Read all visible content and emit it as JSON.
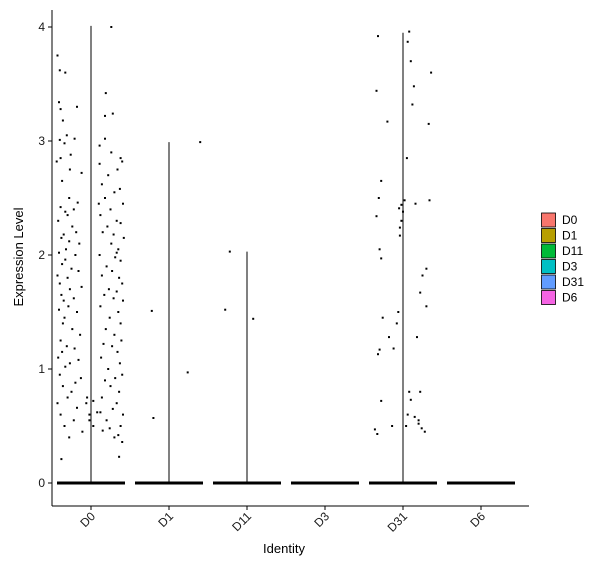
{
  "chart_data": {
    "type": "violin",
    "title": "",
    "xlabel": "Identity",
    "ylabel": "Expression Level",
    "ylim": [
      -0.24,
      4.22
    ],
    "yticks": [
      0,
      1,
      2,
      3,
      4
    ],
    "categories": [
      "D0",
      "D1",
      "D11",
      "D3",
      "D31",
      "D6"
    ],
    "group_max": [
      4.01,
      2.99,
      2.03,
      0.0,
      3.95,
      0.0
    ],
    "legend": {
      "position": "right",
      "entries": [
        {
          "label": "D0",
          "color": "#F8766D"
        },
        {
          "label": "D1",
          "color": "#B79F00"
        },
        {
          "label": "D11",
          "color": "#00BA38"
        },
        {
          "label": "D3",
          "color": "#00BFC4"
        },
        {
          "label": "D31",
          "color": "#619CFF"
        },
        {
          "label": "D6",
          "color": "#F564E3"
        }
      ]
    },
    "points": [
      {
        "category": "D0",
        "jitter": [
          -0.43,
          -0.4,
          -0.33,
          -0.41,
          -0.39,
          -0.36,
          -0.18,
          -0.31,
          -0.21,
          -0.4,
          -0.34,
          -0.26,
          -0.39,
          -0.44,
          -0.27,
          -0.12,
          -0.37,
          -0.28,
          -0.17,
          -0.39,
          -0.22,
          -0.33,
          -0.3,
          -0.42,
          -0.24,
          -0.19,
          -0.35,
          -0.38,
          -0.28,
          -0.15,
          -0.32,
          -0.41,
          -0.2,
          -0.33,
          -0.37,
          -0.25,
          -0.16,
          -0.43,
          -0.3,
          -0.4,
          -0.12,
          -0.27,
          -0.38,
          -0.22,
          -0.35,
          -0.29,
          -0.41,
          -0.18,
          -0.34,
          -0.36,
          -0.24,
          -0.14,
          -0.39,
          -0.31,
          -0.21,
          -0.37,
          -0.42,
          -0.16,
          -0.27,
          -0.33,
          -0.4,
          -0.13,
          -0.2,
          -0.36,
          -0.25,
          -0.3,
          -0.43,
          -0.18,
          -0.39,
          -0.22,
          -0.34,
          -0.11,
          -0.28,
          -0.38,
          -0.05,
          -0.06,
          -0.02,
          -0.02,
          0.03,
          0.08,
          0.03,
          0.28,
          0.18,
          0.18,
          0.11,
          0.26,
          0.38,
          0.11,
          0.4,
          0.34,
          0.22,
          0.14,
          0.37,
          0.3,
          0.18,
          0.41,
          0.25,
          0.12,
          0.33,
          0.38,
          0.21,
          0.15,
          0.29,
          0.42,
          0.26,
          0.35,
          0.11,
          0.31,
          0.38,
          0.2,
          0.27,
          0.14,
          0.36,
          0.4,
          0.23,
          0.33,
          0.17,
          0.29,
          0.41,
          0.12,
          0.35,
          0.24,
          0.38,
          0.19,
          0.3,
          0.39,
          0.16,
          0.27,
          0.34,
          0.13,
          0.37,
          0.22,
          0.4,
          0.31,
          0.18,
          0.25,
          0.36,
          0.14,
          0.33,
          0.28,
          0.41,
          0.2,
          0.38,
          0.24,
          0.15,
          0.35,
          0.3,
          0.4,
          0.12,
          0.36,
          0.26,
          0.19,
          0.33,
          0.1,
          0.05,
          -0.08,
          -0.05,
          0.0
        ],
        "values": [
          3.75,
          3.62,
          3.6,
          3.34,
          3.28,
          3.18,
          3.3,
          3.05,
          3.02,
          3.01,
          2.98,
          2.88,
          2.85,
          2.82,
          2.75,
          2.72,
          2.65,
          2.5,
          2.46,
          2.42,
          2.4,
          2.38,
          2.35,
          2.3,
          2.25,
          2.2,
          2.18,
          2.15,
          2.12,
          2.1,
          2.05,
          2.02,
          2.0,
          1.96,
          1.92,
          1.88,
          1.86,
          1.82,
          1.8,
          1.75,
          1.72,
          1.7,
          1.65,
          1.62,
          1.6,
          1.55,
          1.52,
          1.5,
          1.45,
          1.4,
          1.35,
          1.3,
          1.25,
          1.2,
          1.18,
          1.15,
          1.1,
          1.08,
          1.05,
          1.02,
          0.95,
          0.92,
          0.88,
          0.85,
          0.8,
          0.75,
          0.7,
          0.66,
          0.6,
          0.55,
          0.5,
          0.45,
          0.4,
          0.21,
          0.75,
          0.7,
          0.6,
          0.55,
          0.5,
          0.62,
          0.72,
          3.24,
          3.22,
          3.02,
          2.96,
          2.9,
          2.85,
          2.8,
          2.82,
          2.75,
          2.7,
          2.62,
          2.58,
          2.55,
          2.5,
          2.45,
          2.4,
          2.35,
          2.3,
          2.28,
          2.25,
          2.2,
          2.18,
          2.15,
          2.1,
          2.05,
          2.0,
          1.98,
          1.95,
          1.9,
          1.86,
          1.82,
          1.8,
          1.75,
          1.7,
          1.68,
          1.65,
          1.62,
          1.6,
          1.55,
          1.5,
          1.45,
          1.4,
          1.35,
          1.3,
          1.25,
          1.22,
          1.2,
          1.15,
          1.1,
          1.05,
          1.0,
          0.95,
          0.92,
          0.9,
          0.85,
          0.8,
          0.75,
          0.7,
          0.65,
          0.6,
          0.55,
          0.5,
          0.48,
          0.46,
          0.42,
          0.4,
          0.36,
          0.62,
          0.23,
          4.0,
          3.42,
          2.02,
          2.45
        ]
      },
      {
        "category": "D1",
        "jitter": [
          -0.22,
          -0.2,
          0.24,
          0.4
        ],
        "values": [
          1.51,
          0.57,
          0.97,
          2.99
        ]
      },
      {
        "category": "D11",
        "jitter": [
          -0.28,
          -0.22,
          0.08
        ],
        "values": [
          1.52,
          2.03,
          1.44
        ]
      },
      {
        "category": "D31",
        "jitter": [
          -0.32,
          -0.34,
          -0.28,
          -0.31,
          -0.34,
          -0.3,
          -0.28,
          -0.26,
          -0.3,
          -0.32,
          -0.28,
          -0.33,
          -0.36,
          -0.2,
          -0.18,
          -0.14,
          -0.12,
          -0.08,
          -0.06,
          -0.04,
          -0.02,
          0.0,
          -0.05,
          -0.04,
          -0.02,
          0.02,
          0.05,
          0.08,
          0.06,
          0.1,
          0.12,
          0.14,
          0.16,
          0.18,
          0.2,
          0.1,
          0.08,
          0.06,
          0.04,
          0.15,
          0.22,
          0.25,
          0.3,
          0.34,
          0.36,
          0.33,
          0.3,
          0.28,
          0.24,
          0.2,
          0.22
        ],
        "values": [
          3.92,
          3.44,
          2.65,
          2.5,
          2.34,
          2.05,
          1.97,
          1.45,
          1.17,
          1.13,
          0.72,
          0.43,
          0.47,
          3.17,
          1.28,
          0.5,
          1.18,
          1.4,
          1.5,
          2.24,
          2.3,
          2.38,
          2.41,
          2.17,
          2.44,
          2.48,
          2.85,
          3.96,
          3.87,
          3.7,
          3.32,
          3.48,
          2.45,
          1.28,
          0.55,
          0.73,
          0.8,
          0.6,
          0.5,
          0.58,
          1.67,
          1.82,
          1.88,
          2.48,
          3.6,
          3.15,
          1.55,
          0.45,
          0.48,
          0.52,
          0.8
        ]
      }
    ]
  }
}
